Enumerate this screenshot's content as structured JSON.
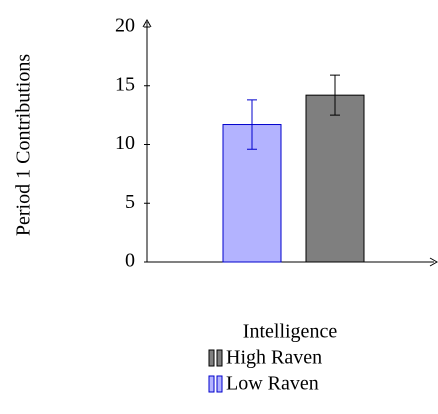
{
  "chart_data": {
    "type": "bar",
    "ylabel": "Period 1 Contributions",
    "ylim": [
      0,
      20
    ],
    "yticks": [
      0,
      5,
      10,
      15,
      20
    ],
    "legend_title": "Intelligence",
    "series": [
      {
        "name": "Low Raven",
        "color": "#b3b3ff",
        "edge": "#0000cc",
        "values": [
          11.7
        ],
        "errors": [
          2.1
        ]
      },
      {
        "name": "High Raven",
        "color": "#7f7f7f",
        "edge": "#000000",
        "values": [
          14.2
        ],
        "errors": [
          1.7
        ]
      }
    ]
  }
}
